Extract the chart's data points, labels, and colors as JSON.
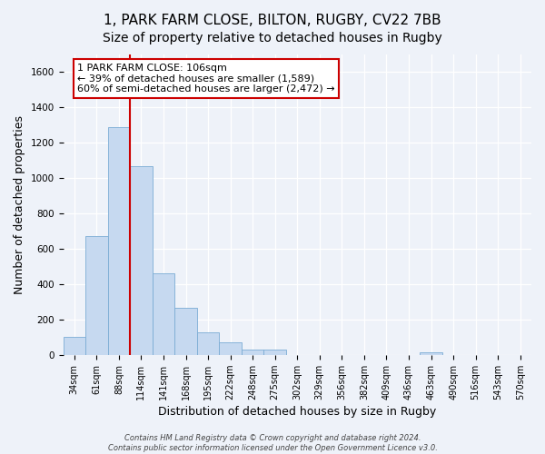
{
  "title": "1, PARK FARM CLOSE, BILTON, RUGBY, CV22 7BB",
  "subtitle": "Size of property relative to detached houses in Rugby",
  "xlabel": "Distribution of detached houses by size in Rugby",
  "ylabel": "Number of detached properties",
  "bar_labels": [
    "34sqm",
    "61sqm",
    "88sqm",
    "114sqm",
    "141sqm",
    "168sqm",
    "195sqm",
    "222sqm",
    "248sqm",
    "275sqm",
    "302sqm",
    "329sqm",
    "356sqm",
    "382sqm",
    "409sqm",
    "436sqm",
    "463sqm",
    "490sqm",
    "516sqm",
    "543sqm",
    "570sqm"
  ],
  "bar_values": [
    100,
    670,
    1290,
    1070,
    460,
    265,
    130,
    70,
    30,
    30,
    0,
    0,
    0,
    0,
    0,
    0,
    15,
    0,
    0,
    0,
    0
  ],
  "bar_color": "#c6d9f0",
  "bar_edge_color": "#7bacd4",
  "vline_color": "#cc0000",
  "annotation_text": "1 PARK FARM CLOSE: 106sqm\n← 39% of detached houses are smaller (1,589)\n60% of semi-detached houses are larger (2,472) →",
  "ylim": [
    0,
    1700
  ],
  "yticks": [
    0,
    200,
    400,
    600,
    800,
    1000,
    1200,
    1400,
    1600
  ],
  "footer": "Contains HM Land Registry data © Crown copyright and database right 2024.\nContains public sector information licensed under the Open Government Licence v3.0.",
  "bg_color": "#eef2f9",
  "grid_color": "#ffffff",
  "title_fontsize": 11,
  "tick_fontsize": 7,
  "label_fontsize": 9,
  "footer_fontsize": 6
}
